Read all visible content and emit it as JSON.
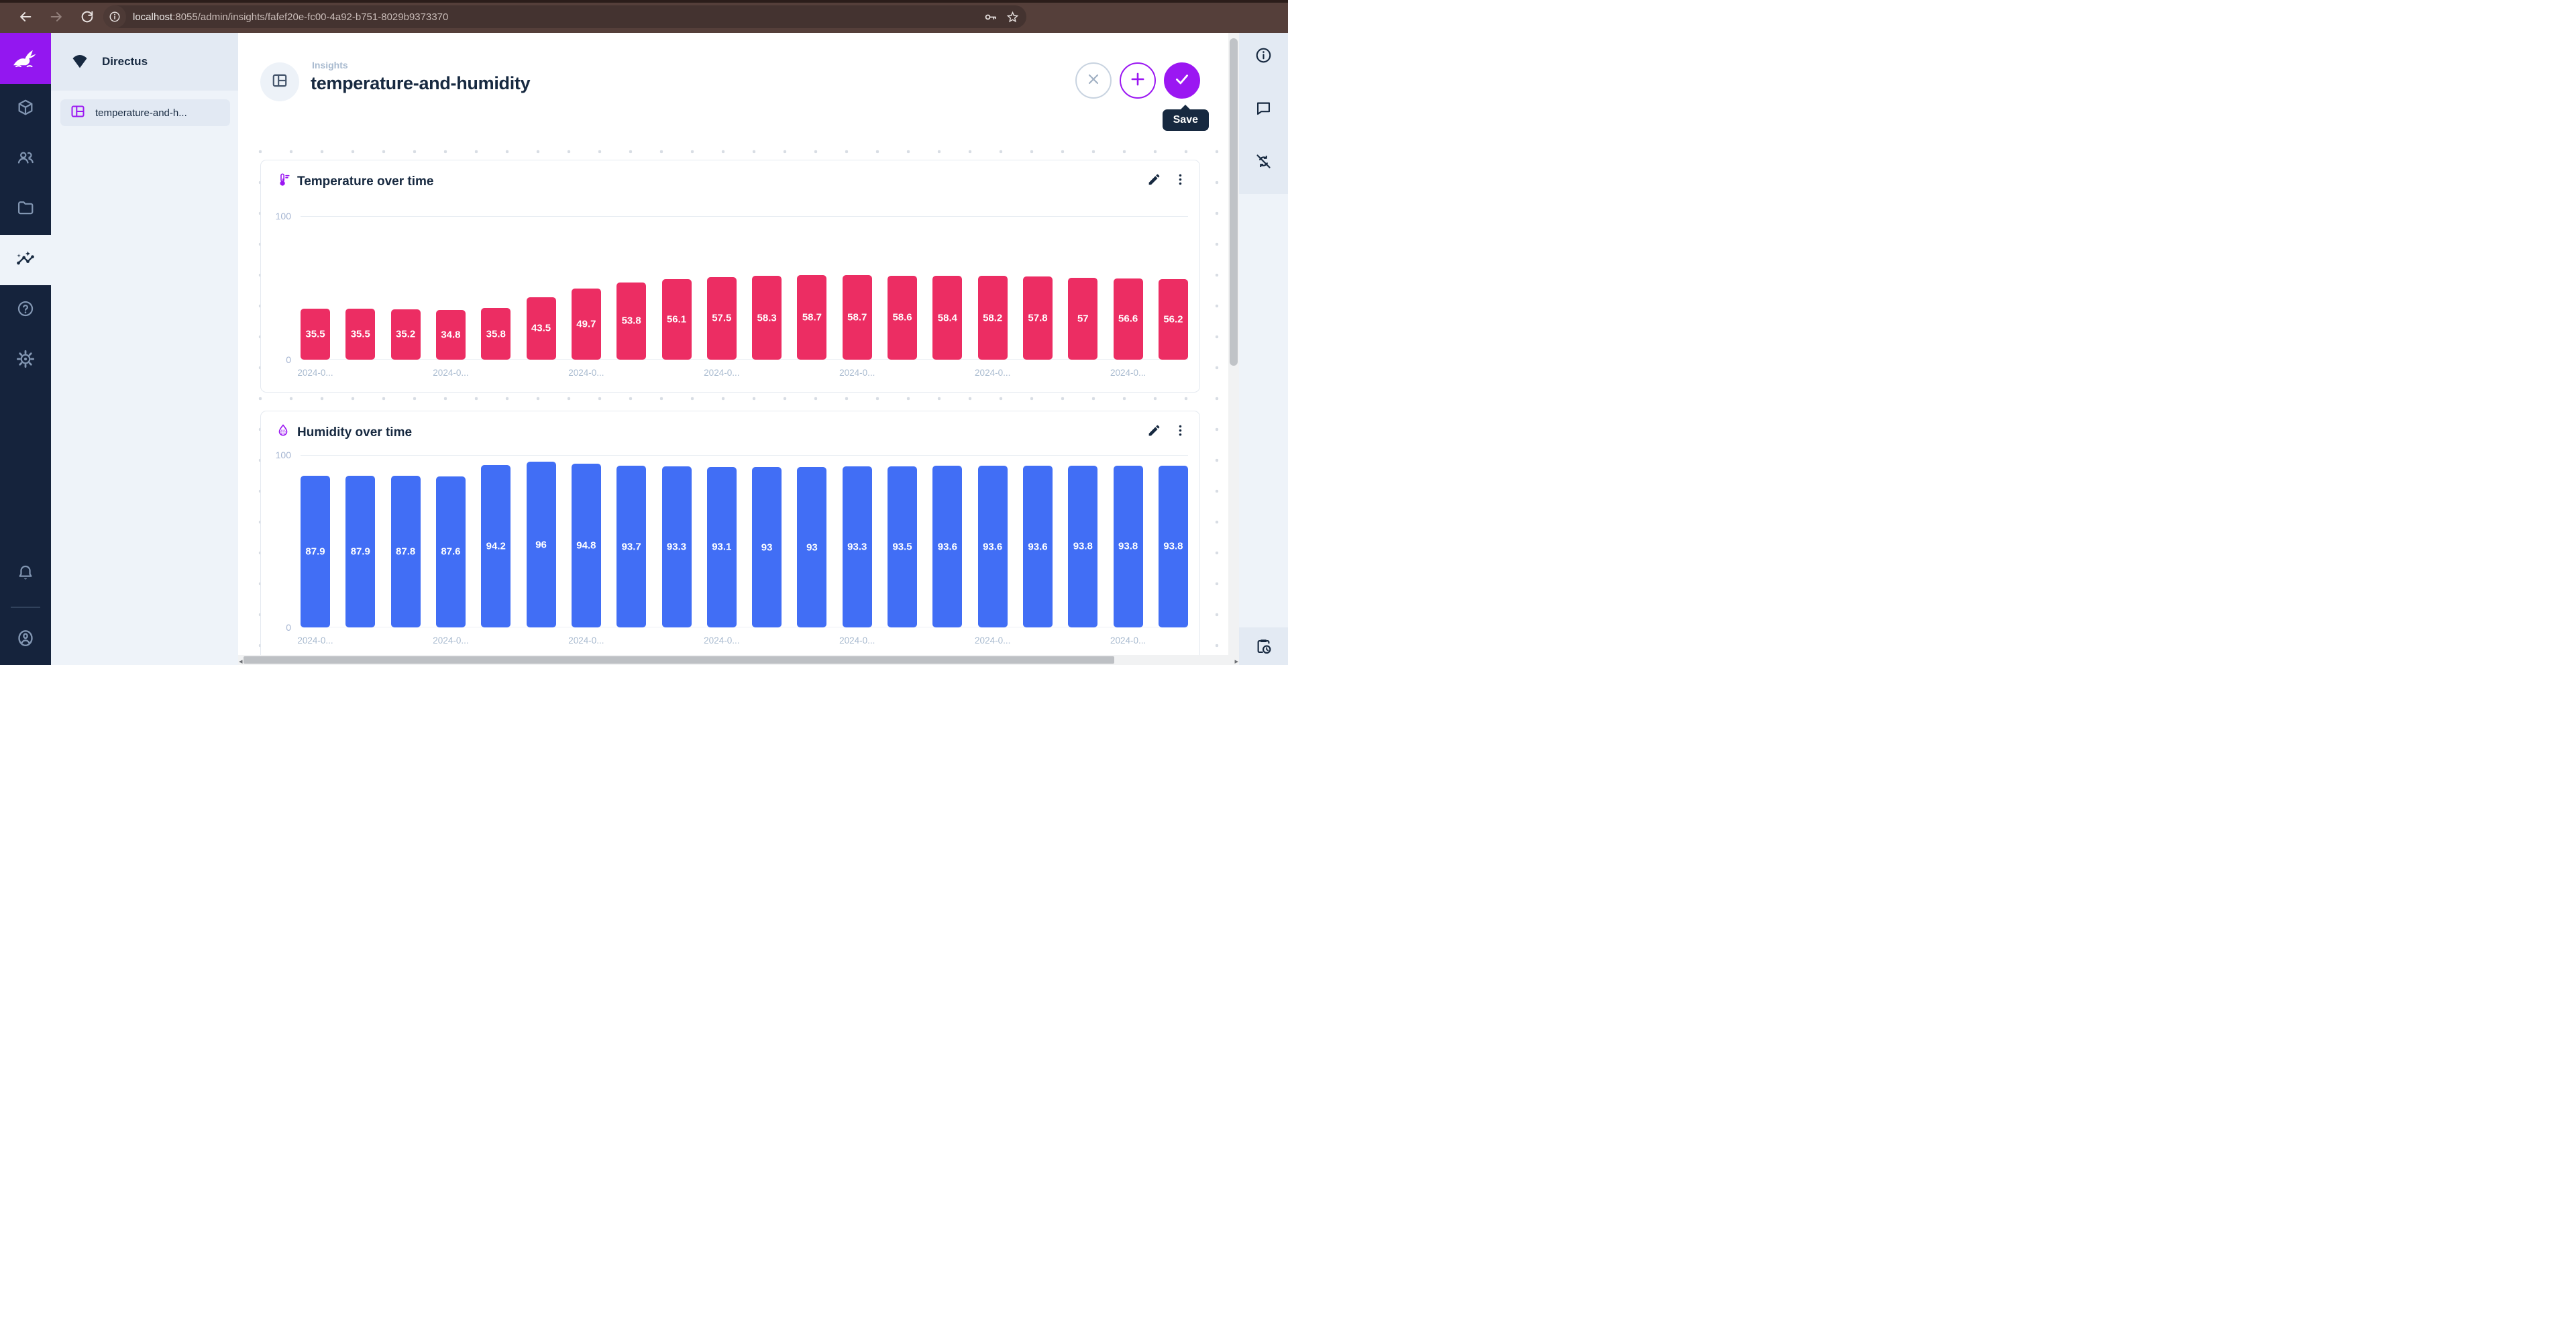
{
  "browser": {
    "url_host": "localhost",
    "url_rest": ":8055/admin/insights/fafef20e-fc00-4a92-b751-8029b9373370"
  },
  "app": {
    "project_name": "Directus",
    "sidebar_item_label": "temperature-and-h...",
    "breadcrumb": "Insights",
    "page_title": "temperature-and-humidity",
    "save_tooltip": "Save"
  },
  "colors": {
    "accent_purple": "#9b17f2",
    "navy": "#172940",
    "temperature_bar": "#ec2d63",
    "humidity_bar": "#416ef5"
  },
  "icons": [
    "back-icon",
    "forward-icon",
    "refresh-icon",
    "site-info-icon",
    "key-icon",
    "star-icon",
    "directus-logo",
    "content-module-icon",
    "users-module-icon",
    "files-module-icon",
    "insights-module-icon",
    "help-module-icon",
    "settings-module-icon",
    "bell-icon",
    "avatar-icon",
    "project-shield-icon",
    "dashboard-icon",
    "close-icon",
    "plus-icon",
    "check-icon",
    "thermometer-icon",
    "water-drop-icon",
    "pencil-icon",
    "kebab-icon",
    "info-icon",
    "comment-icon",
    "sync-disabled-icon",
    "pending-actions-icon"
  ],
  "chart_data": [
    {
      "type": "bar",
      "title": "Temperature over time",
      "icon": "thermometer-icon",
      "bar_color": "#ec2d63",
      "ylim": [
        0,
        100
      ],
      "y_ticks": [
        "100",
        "0"
      ],
      "grid": true,
      "legend": "none",
      "values": [
        35.5,
        35.5,
        35.2,
        34.8,
        35.8,
        43.5,
        49.7,
        53.8,
        56.1,
        57.5,
        58.3,
        58.7,
        58.7,
        58.6,
        58.4,
        58.2,
        57.8,
        57,
        56.6,
        56.2
      ],
      "categories": [
        "2024-0...",
        "",
        "",
        "2024-0...",
        "",
        "",
        "2024-0...",
        "",
        "",
        "2024-0...",
        "",
        "",
        "2024-0...",
        "",
        "",
        "2024-0...",
        "",
        "",
        "2024-0...",
        ""
      ]
    },
    {
      "type": "bar",
      "title": "Humidity over time",
      "icon": "water-drop-icon",
      "bar_color": "#416ef5",
      "ylim": [
        0,
        100
      ],
      "y_ticks": [
        "100",
        "0"
      ],
      "grid": true,
      "legend": "none",
      "values": [
        87.9,
        87.9,
        87.8,
        87.6,
        94.2,
        96,
        94.8,
        93.7,
        93.3,
        93.1,
        93,
        93,
        93.3,
        93.5,
        93.6,
        93.6,
        93.6,
        93.8,
        93.8,
        93.8
      ],
      "categories": [
        "2024-0...",
        "",
        "",
        "2024-0...",
        "",
        "",
        "2024-0...",
        "",
        "",
        "2024-0...",
        "",
        "",
        "2024-0...",
        "",
        "",
        "2024-0...",
        "",
        "",
        "2024-0...",
        ""
      ]
    }
  ]
}
